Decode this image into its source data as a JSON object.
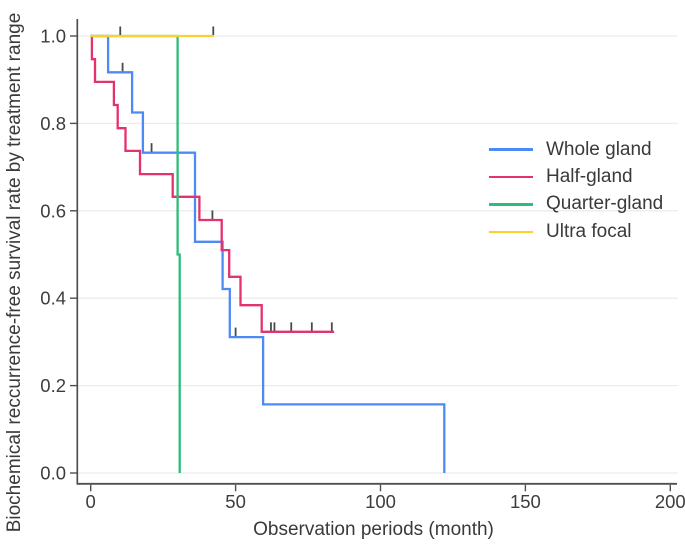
{
  "chart_data": {
    "type": "line",
    "subtype": "kaplan-meier-step",
    "title": "",
    "xlabel": "Observation periods (month)",
    "ylabel": "Biochemical reccurrence-free survival rate by treatment range",
    "xlim": [
      0,
      200
    ],
    "ylim": [
      0.0,
      1.0
    ],
    "x_ticks": [
      0,
      50,
      100,
      150,
      200
    ],
    "y_tick_values": [
      1.0,
      0.8,
      0.6,
      0.4,
      0.2,
      0.0
    ],
    "y_tick_labels": [
      "1.0",
      "0.8",
      "0.6",
      "0.4",
      "0.2",
      "0.0"
    ],
    "grid": "horizontal-only",
    "legend_position": "right-center",
    "colors": {
      "axis": "#4f4f4f",
      "gridline": "#ececec",
      "censor_mark": "#4a4a4a",
      "text": "#3a3a3a"
    },
    "series": [
      {
        "name": "Whole gland",
        "color": "#4C8BF5",
        "steps": [
          [
            0,
            1.0
          ],
          [
            6,
            1.0
          ],
          [
            6,
            0.917
          ],
          [
            14.3,
            0.917
          ],
          [
            14.3,
            0.825
          ],
          [
            18,
            0.825
          ],
          [
            18,
            0.733
          ],
          [
            36,
            0.733
          ],
          [
            36,
            0.529
          ],
          [
            45.5,
            0.529
          ],
          [
            45.5,
            0.421
          ],
          [
            48,
            0.421
          ],
          [
            48,
            0.311
          ],
          [
            59.5,
            0.311
          ],
          [
            59.5,
            0.157
          ],
          [
            122,
            0.157
          ],
          [
            122,
            0.0
          ]
        ],
        "censors": [
          [
            11,
            0.917
          ],
          [
            21,
            0.733
          ],
          [
            50,
            0.311
          ]
        ]
      },
      {
        "name": "Half-gland",
        "color": "#E4336B",
        "steps": [
          [
            0,
            1.0
          ],
          [
            0.4,
            1.0
          ],
          [
            0.4,
            0.947
          ],
          [
            1.5,
            0.947
          ],
          [
            1.5,
            0.895
          ],
          [
            8,
            0.895
          ],
          [
            8,
            0.842
          ],
          [
            9.3,
            0.842
          ],
          [
            9.3,
            0.789
          ],
          [
            12,
            0.789
          ],
          [
            12,
            0.737
          ],
          [
            17,
            0.737
          ],
          [
            17,
            0.684
          ],
          [
            28.3,
            0.684
          ],
          [
            28.3,
            0.632
          ],
          [
            37.5,
            0.632
          ],
          [
            37.5,
            0.579
          ],
          [
            45.2,
            0.579
          ],
          [
            45.2,
            0.51
          ],
          [
            47.8,
            0.51
          ],
          [
            47.8,
            0.449
          ],
          [
            51.7,
            0.449
          ],
          [
            51.7,
            0.384
          ],
          [
            59,
            0.384
          ],
          [
            59,
            0.323
          ],
          [
            84,
            0.323
          ]
        ],
        "censors": [
          [
            42,
            0.579
          ],
          [
            62.2,
            0.323
          ],
          [
            63.4,
            0.323
          ],
          [
            69.2,
            0.323
          ],
          [
            76.3,
            0.323
          ],
          [
            83.2,
            0.323
          ]
        ]
      },
      {
        "name": "Quarter-gland",
        "color": "#2DBD7A",
        "steps": [
          [
            0,
            1.0
          ],
          [
            30,
            1.0
          ],
          [
            30,
            0.5
          ],
          [
            30.7,
            0.5
          ],
          [
            30.7,
            0.0
          ]
        ],
        "censors": []
      },
      {
        "name": "Ultra focal",
        "color": "#FCD02E",
        "steps": [
          [
            0,
            1.0
          ],
          [
            42.5,
            1.0
          ]
        ],
        "censors": [
          [
            10.2,
            1.0
          ],
          [
            42.3,
            1.0
          ]
        ]
      }
    ]
  }
}
